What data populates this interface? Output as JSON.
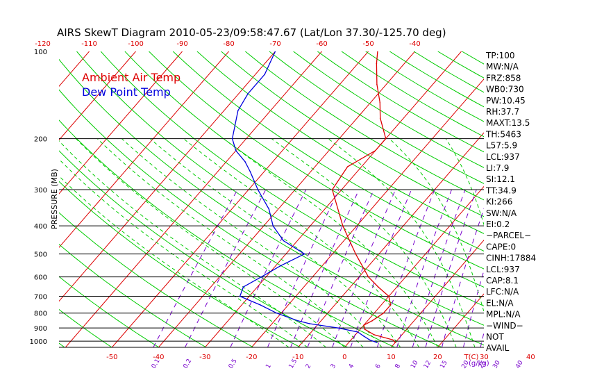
{
  "chart_data": {
    "type": "line",
    "title": "AIRS SkewT Diagram 2010-05-23/09:58:47.67 (Lat/Lon 37.30/-125.70 deg)",
    "ylabel": "PRESSURE (MB)",
    "x_unit_label": "T(C)",
    "mixing_ratio_unit_label": "(g/kg)",
    "y_scale": "log",
    "ylim": [
      1050,
      100
    ],
    "pressure_ticks": [
      100,
      200,
      300,
      400,
      500,
      600,
      700,
      800,
      900,
      1000
    ],
    "bottom_temp_ticks": [
      -50,
      -40,
      -30,
      -20,
      -10,
      0,
      10,
      20,
      30,
      40
    ],
    "top_temp_ticks": [
      -120,
      -110,
      -100,
      -90,
      -80,
      -70,
      -60,
      -50,
      -40
    ],
    "mixing_ratio_labels": [
      "0.1",
      "0.2",
      "0.5",
      "1",
      "1.5",
      "2",
      "3",
      "4",
      "6",
      "8",
      "10",
      "12",
      "15",
      "20",
      "25",
      "30",
      "40"
    ],
    "mixing_ratios": [
      0.1,
      0.2,
      0.5,
      1,
      1.5,
      2,
      3,
      4,
      6,
      8,
      10,
      12,
      15,
      20,
      25,
      30,
      40
    ],
    "legend": [
      {
        "label": "Ambient Air Temp",
        "color": "#dd0000"
      },
      {
        "label": "Dew Point Temp",
        "color": "#0000dd"
      }
    ],
    "colors": {
      "isotherm": "#dd0000",
      "dry_adiabat": "#00cc00",
      "moist_adiabat": "#00cc00",
      "mixing_ratio": "#7700cc",
      "profile_temp": "#dd0000",
      "profile_dew": "#0000dd",
      "axis_labels": "#dd0000"
    },
    "series": [
      {
        "name": "Ambient Air Temp",
        "points": [
          [
            1010,
            10
          ],
          [
            990,
            9
          ],
          [
            950,
            4
          ],
          [
            910,
            1
          ],
          [
            880,
            0
          ],
          [
            850,
            1
          ],
          [
            800,
            2
          ],
          [
            750,
            2
          ],
          [
            700,
            0
          ],
          [
            650,
            -4
          ],
          [
            600,
            -8
          ],
          [
            500,
            -15
          ],
          [
            400,
            -23
          ],
          [
            300,
            -32
          ],
          [
            250,
            -33
          ],
          [
            220,
            -30
          ],
          [
            200,
            -30
          ],
          [
            170,
            -35
          ],
          [
            150,
            -38
          ],
          [
            130,
            -42
          ],
          [
            110,
            -46
          ],
          [
            100,
            -48
          ]
        ]
      },
      {
        "name": "Dew Point Temp",
        "points": [
          [
            1010,
            6
          ],
          [
            990,
            4
          ],
          [
            960,
            2
          ],
          [
            930,
            0
          ],
          [
            900,
            -5
          ],
          [
            870,
            -12
          ],
          [
            850,
            -15
          ],
          [
            800,
            -21
          ],
          [
            750,
            -26
          ],
          [
            700,
            -32
          ],
          [
            650,
            -33
          ],
          [
            600,
            -31
          ],
          [
            550,
            -29
          ],
          [
            500,
            -26
          ],
          [
            450,
            -33
          ],
          [
            400,
            -38
          ],
          [
            350,
            -42
          ],
          [
            300,
            -48
          ],
          [
            260,
            -53
          ],
          [
            240,
            -56
          ],
          [
            220,
            -60
          ],
          [
            200,
            -63
          ],
          [
            160,
            -67
          ],
          [
            140,
            -68
          ],
          [
            120,
            -68
          ],
          [
            100,
            -70
          ]
        ]
      }
    ]
  },
  "indices": [
    "TP:100",
    "MW:N/A",
    "FRZ:858",
    "WB0:730",
    "PW:10.45",
    "RH:37.7",
    "MAXT:13.5",
    "TH:5463",
    "L57:5.9",
    "LCL:937",
    "LI:7.9",
    "SI:12.1",
    "TT:34.9",
    "KI:266",
    "SW:N/A",
    "EI:0.2",
    "−PARCEL−",
    "CAPE:0",
    "CINH:17884",
    "LCL:937",
    "CAP:8.1",
    "LFC:N/A",
    "EL:N/A",
    "MPL:N/A",
    "−WIND−",
    "NOT",
    "AVAIL"
  ]
}
